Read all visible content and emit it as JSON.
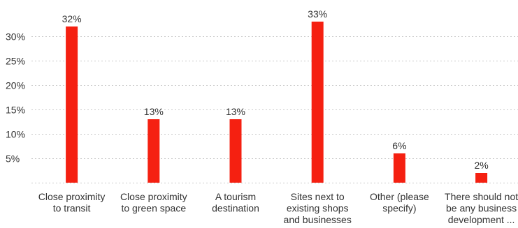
{
  "chart_data": {
    "type": "bar",
    "categories": [
      [
        "Close proximity",
        "to transit"
      ],
      [
        "Close proximity",
        "to green space"
      ],
      [
        "A tourism",
        "destination"
      ],
      [
        "Sites next to",
        "existing shops",
        "and businesses"
      ],
      [
        "Other (please",
        "specify)"
      ],
      [
        "There should not",
        "be any business",
        "development ..."
      ]
    ],
    "values": [
      32,
      13,
      13,
      33,
      6,
      2
    ],
    "value_labels": [
      "32%",
      "13%",
      "13%",
      "33%",
      "6%",
      "2%"
    ],
    "ylim": [
      0,
      35
    ],
    "yticks": [
      5,
      10,
      15,
      20,
      25,
      30
    ],
    "ytick_labels": [
      "5%",
      "10%",
      "15%",
      "20%",
      "25%",
      "30%"
    ],
    "bar_color": "#f52011",
    "gridlines": true,
    "title": "",
    "xlabel": "",
    "ylabel": ""
  }
}
